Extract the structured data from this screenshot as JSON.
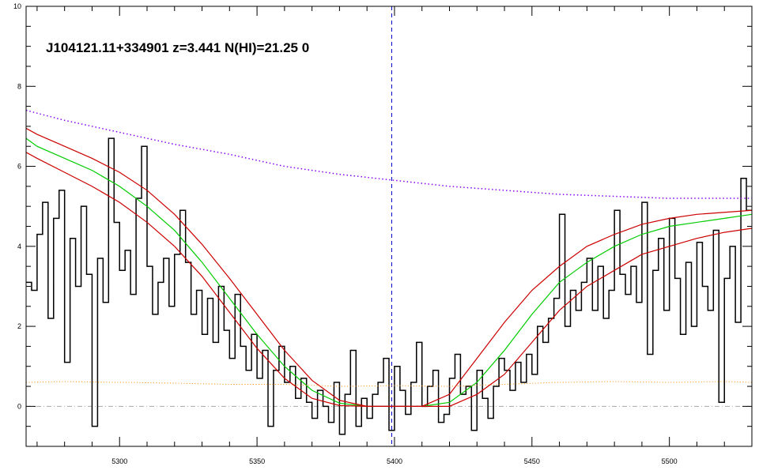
{
  "chart_data": {
    "type": "line",
    "title": "J104121.11+334901 z=3.441 N(HI)=21.25 0",
    "xlabel": "",
    "ylabel": "",
    "xlim": [
      5266,
      5530
    ],
    "ylim": [
      -1,
      10
    ],
    "x_ticks": [
      5300,
      5350,
      5400,
      5450,
      5500
    ],
    "y_ticks": [
      0,
      2,
      4,
      6,
      8,
      10
    ],
    "grid": false,
    "legend": "none",
    "center_marker_x": 5399,
    "zero_level": 0,
    "colors": {
      "flux": "#000000",
      "fit": "#00cc00",
      "fit_bounds": "#cc0000",
      "continuum": "#8800ff",
      "error": "#ff8800",
      "center_marker": "#0000cc",
      "zero_line": "#aaaaaa"
    },
    "series": [
      {
        "style": "black-histogram",
        "x": [
          5266,
          5268,
          5270,
          5272,
          5274,
          5276,
          5278,
          5280,
          5282,
          5284,
          5286,
          5288,
          5290,
          5292,
          5294,
          5296,
          5298,
          5300,
          5302,
          5304,
          5306,
          5308,
          5310,
          5312,
          5314,
          5316,
          5318,
          5320,
          5322,
          5324,
          5326,
          5328,
          5330,
          5332,
          5334,
          5336,
          5338,
          5340,
          5342,
          5344,
          5346,
          5348,
          5350,
          5352,
          5354,
          5356,
          5358,
          5360,
          5362,
          5364,
          5366,
          5368,
          5370,
          5372,
          5374,
          5376,
          5378,
          5380,
          5382,
          5384,
          5386,
          5388,
          5390,
          5392,
          5394,
          5396,
          5398,
          5400,
          5402,
          5404,
          5406,
          5408,
          5410,
          5412,
          5414,
          5416,
          5418,
          5420,
          5422,
          5424,
          5426,
          5428,
          5430,
          5432,
          5434,
          5436,
          5438,
          5440,
          5442,
          5444,
          5446,
          5448,
          5450,
          5452,
          5454,
          5456,
          5458,
          5460,
          5462,
          5464,
          5466,
          5468,
          5470,
          5472,
          5474,
          5476,
          5478,
          5480,
          5482,
          5484,
          5486,
          5488,
          5490,
          5492,
          5494,
          5496,
          5498,
          5500,
          5502,
          5504,
          5506,
          5508,
          5510,
          5512,
          5514,
          5516,
          5518,
          5520,
          5522,
          5524,
          5526,
          5528
        ],
        "y": [
          3.1,
          2.9,
          4.3,
          5.1,
          2.2,
          4.7,
          5.4,
          1.1,
          4.2,
          3.0,
          5.0,
          3.3,
          -0.5,
          3.7,
          2.6,
          6.7,
          4.6,
          3.4,
          3.9,
          2.8,
          5.2,
          6.5,
          3.5,
          2.3,
          3.1,
          3.7,
          2.5,
          3.8,
          4.9,
          3.6,
          2.3,
          2.9,
          1.8,
          2.7,
          1.6,
          3.0,
          1.9,
          1.2,
          2.8,
          1.5,
          0.9,
          1.8,
          0.7,
          1.4,
          -0.5,
          0.9,
          1.5,
          0.6,
          1.0,
          0.2,
          0.7,
          0.1,
          -0.3,
          0.4,
          0.0,
          -0.4,
          0.6,
          -0.7,
          0.3,
          1.4,
          -0.5,
          0.2,
          -0.3,
          0.3,
          0.6,
          1.2,
          -0.6,
          1.0,
          0.4,
          -0.2,
          0.6,
          1.6,
          0.0,
          0.5,
          0.9,
          -0.4,
          -0.2,
          0.7,
          1.3,
          0.3,
          0.5,
          -0.6,
          0.9,
          0.2,
          -0.3,
          0.5,
          1.2,
          0.9,
          0.4,
          1.1,
          0.6,
          1.3,
          0.8,
          2.0,
          1.6,
          2.2,
          2.7,
          4.8,
          2.0,
          2.9,
          2.4,
          3.1,
          3.7,
          2.4,
          3.5,
          2.2,
          2.9,
          4.9,
          3.3,
          2.8,
          3.5,
          2.6,
          5.1,
          1.3,
          3.4,
          4.2,
          2.4,
          4.7,
          3.2,
          1.8,
          3.6,
          2.0,
          4.1,
          3.0,
          2.4,
          4.4,
          0.1,
          3.2,
          4.0,
          2.1,
          5.7,
          4.9
        ]
      },
      {
        "style": "green-fit",
        "x": [
          5266,
          5270,
          5280,
          5290,
          5300,
          5310,
          5320,
          5330,
          5340,
          5350,
          5360,
          5370,
          5380,
          5390,
          5400,
          5410,
          5420,
          5430,
          5440,
          5450,
          5460,
          5470,
          5480,
          5490,
          5500,
          5510,
          5520,
          5530
        ],
        "y": [
          6.7,
          6.5,
          6.2,
          5.9,
          5.5,
          5.0,
          4.4,
          3.6,
          2.7,
          1.8,
          1.0,
          0.4,
          0.08,
          0.0,
          0.0,
          0.0,
          0.1,
          0.6,
          1.4,
          2.3,
          3.1,
          3.6,
          4.0,
          4.3,
          4.5,
          4.6,
          4.7,
          4.8
        ]
      },
      {
        "style": "red-fit-upper",
        "x": [
          5266,
          5270,
          5280,
          5290,
          5300,
          5310,
          5320,
          5330,
          5340,
          5350,
          5360,
          5370,
          5380,
          5390,
          5400,
          5410,
          5420,
          5430,
          5440,
          5450,
          5460,
          5470,
          5480,
          5490,
          5500,
          5510,
          5520,
          5530
        ],
        "y": [
          6.95,
          6.8,
          6.5,
          6.2,
          5.85,
          5.4,
          4.8,
          4.05,
          3.2,
          2.3,
          1.4,
          0.65,
          0.15,
          0.0,
          0.0,
          0.0,
          0.3,
          1.2,
          2.1,
          2.9,
          3.5,
          4.0,
          4.3,
          4.55,
          4.7,
          4.8,
          4.85,
          4.9
        ]
      },
      {
        "style": "red-fit-lower",
        "x": [
          5266,
          5270,
          5280,
          5290,
          5300,
          5310,
          5320,
          5330,
          5340,
          5350,
          5360,
          5370,
          5380,
          5390,
          5400,
          5410,
          5420,
          5430,
          5440,
          5450,
          5460,
          5470,
          5480,
          5490,
          5500,
          5510,
          5520,
          5530
        ],
        "y": [
          6.35,
          6.2,
          5.85,
          5.5,
          5.1,
          4.6,
          4.0,
          3.25,
          2.35,
          1.45,
          0.7,
          0.2,
          0.02,
          0.0,
          0.0,
          0.0,
          0.0,
          0.3,
          0.8,
          1.6,
          2.4,
          3.0,
          3.4,
          3.8,
          4.0,
          4.2,
          4.35,
          4.45
        ]
      },
      {
        "style": "purple-continuum",
        "x": [
          5266,
          5280,
          5300,
          5320,
          5340,
          5360,
          5380,
          5400,
          5420,
          5440,
          5460,
          5480,
          5500,
          5520,
          5530
        ],
        "y": [
          7.4,
          7.15,
          6.85,
          6.55,
          6.3,
          6.0,
          5.8,
          5.65,
          5.5,
          5.4,
          5.3,
          5.25,
          5.2,
          5.2,
          5.2
        ]
      },
      {
        "style": "orange-error",
        "x": [
          5266,
          5280,
          5300,
          5320,
          5340,
          5360,
          5380,
          5400,
          5420,
          5440,
          5460,
          5480,
          5500,
          5520,
          5530
        ],
        "y": [
          0.6,
          0.62,
          0.6,
          0.58,
          0.55,
          0.55,
          0.5,
          0.52,
          0.5,
          0.55,
          0.6,
          0.62,
          0.6,
          0.62,
          0.6
        ]
      }
    ]
  }
}
